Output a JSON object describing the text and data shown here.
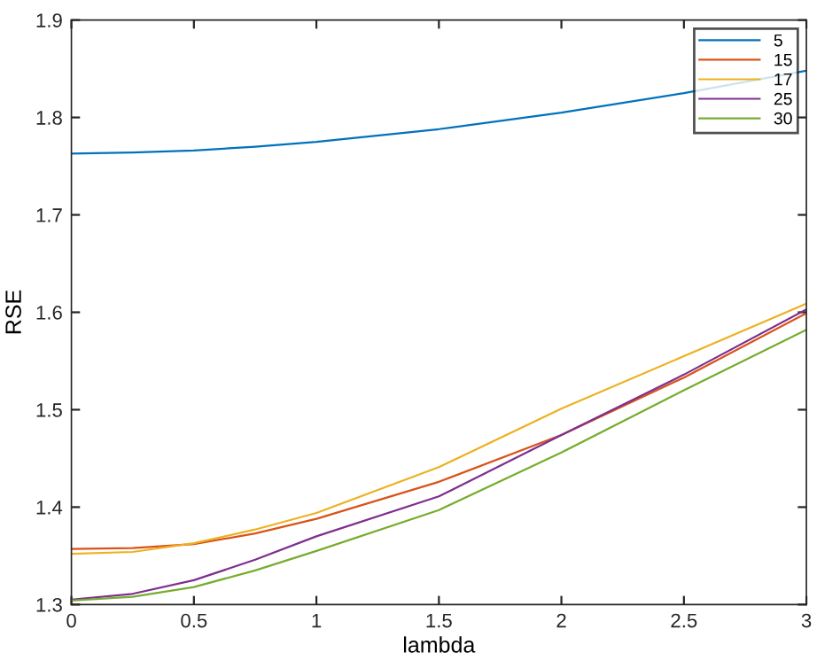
{
  "chart_data": {
    "type": "line",
    "xlabel": "lambda",
    "ylabel": "RSE",
    "x": [
      0,
      0.25,
      0.5,
      0.75,
      1,
      1.5,
      2,
      2.5,
      3
    ],
    "series": [
      {
        "name": "5",
        "color": "#0072bd",
        "values": [
          1.763,
          1.764,
          1.766,
          1.77,
          1.775,
          1.788,
          1.805,
          1.825,
          1.848
        ]
      },
      {
        "name": "15",
        "color": "#d95319",
        "values": [
          1.357,
          1.358,
          1.362,
          1.373,
          1.388,
          1.426,
          1.474,
          1.533,
          1.599
        ]
      },
      {
        "name": "17",
        "color": "#edb120",
        "values": [
          1.352,
          1.354,
          1.363,
          1.377,
          1.394,
          1.441,
          1.501,
          1.555,
          1.609
        ]
      },
      {
        "name": "25",
        "color": "#7e2f8e",
        "values": [
          1.305,
          1.311,
          1.325,
          1.346,
          1.37,
          1.411,
          1.474,
          1.536,
          1.603
        ]
      },
      {
        "name": "30",
        "color": "#77ac30",
        "values": [
          1.304,
          1.308,
          1.318,
          1.335,
          1.355,
          1.397,
          1.456,
          1.52,
          1.582
        ]
      }
    ],
    "xlim": [
      0,
      3
    ],
    "xticks": [
      0,
      0.5,
      1,
      1.5,
      2,
      2.5,
      3
    ],
    "ylim": [
      1.3,
      1.9
    ],
    "yticks": [
      1.3,
      1.4,
      1.5,
      1.6,
      1.7,
      1.8,
      1.9
    ],
    "grid": false,
    "legend": "top right",
    "marker": "none",
    "line_style": "solid"
  }
}
